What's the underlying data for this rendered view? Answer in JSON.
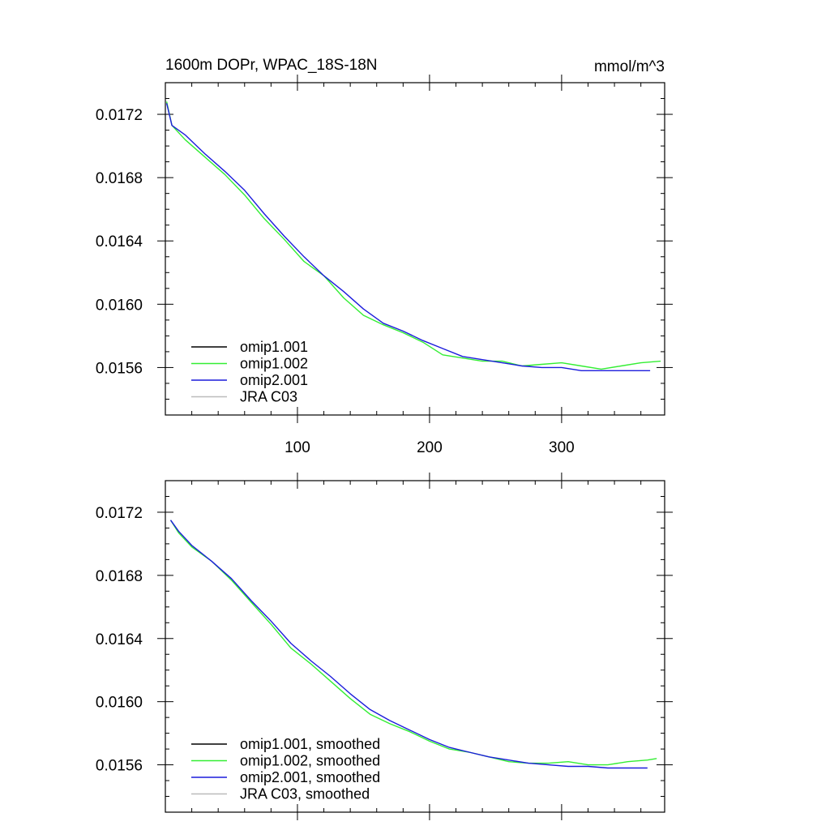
{
  "chart_data": [
    {
      "type": "line",
      "title": "1600m DOPr, WPAC_18S-18N",
      "units": "mmol/m^3",
      "xlim": [
        0,
        378
      ],
      "ylim": [
        0.0153,
        0.0174
      ],
      "x_ticks": [
        100,
        200,
        300
      ],
      "y_ticks": [
        0.0156,
        0.016,
        0.0164,
        0.0168,
        0.0172
      ],
      "y_tick_labels": [
        "0.0156",
        "0.0160",
        "0.0164",
        "0.0168",
        "0.0172"
      ],
      "legend_position": "bottom-left",
      "series": [
        {
          "name": "omip1.001",
          "color": "#000000",
          "x": [],
          "y": []
        },
        {
          "name": "omip1.002",
          "color": "#33ee33",
          "x": [
            1,
            5,
            15,
            30,
            45,
            60,
            75,
            90,
            105,
            120,
            135,
            150,
            165,
            180,
            195,
            210,
            225,
            240,
            255,
            270,
            285,
            300,
            315,
            330,
            345,
            360,
            375
          ],
          "y": [
            0.01728,
            0.01713,
            0.01704,
            0.01693,
            0.01682,
            0.01669,
            0.01654,
            0.01641,
            0.01627,
            0.01618,
            0.01604,
            0.01593,
            0.01587,
            0.01582,
            0.01576,
            0.01568,
            0.01566,
            0.01564,
            0.01564,
            0.01561,
            0.01562,
            0.01563,
            0.01561,
            0.01559,
            0.01561,
            0.01563,
            0.01564
          ]
        },
        {
          "name": "omip2.001",
          "color": "#1c1cdc",
          "x": [
            1,
            5,
            15,
            30,
            45,
            60,
            75,
            90,
            105,
            120,
            135,
            150,
            165,
            180,
            195,
            210,
            225,
            240,
            255,
            270,
            285,
            300,
            315,
            330,
            345,
            360,
            367
          ],
          "y": [
            0.01727,
            0.01713,
            0.01707,
            0.01695,
            0.01684,
            0.01672,
            0.01657,
            0.01643,
            0.0163,
            0.01618,
            0.01608,
            0.01597,
            0.01588,
            0.01583,
            0.01577,
            0.01572,
            0.01567,
            0.01565,
            0.01563,
            0.01561,
            0.0156,
            0.0156,
            0.01558,
            0.01558,
            0.01558,
            0.01558,
            0.01558
          ]
        },
        {
          "name": "JRA C03",
          "color": "#bbbbbb",
          "x": [],
          "y": []
        }
      ]
    },
    {
      "type": "line",
      "title": "",
      "units": "",
      "xlim": [
        0,
        378
      ],
      "ylim": [
        0.0153,
        0.0174
      ],
      "x_ticks": [
        100,
        200,
        300
      ],
      "y_ticks": [
        0.0156,
        0.016,
        0.0164,
        0.0168,
        0.0172
      ],
      "y_tick_labels": [
        "0.0156",
        "0.0160",
        "0.0164",
        "0.0168",
        "0.0172"
      ],
      "legend_position": "bottom-left",
      "series": [
        {
          "name": "omip1.001, smoothed",
          "color": "#000000",
          "x": [],
          "y": []
        },
        {
          "name": "omip1.002, smoothed",
          "color": "#33ee33",
          "x": [
            4,
            10,
            20,
            35,
            50,
            65,
            80,
            95,
            110,
            125,
            140,
            155,
            170,
            185,
            200,
            215,
            230,
            245,
            260,
            275,
            290,
            305,
            320,
            335,
            350,
            365,
            372
          ],
          "y": [
            0.01715,
            0.01707,
            0.01698,
            0.01689,
            0.01677,
            0.01663,
            0.01649,
            0.01634,
            0.01624,
            0.01613,
            0.01602,
            0.01592,
            0.01586,
            0.01581,
            0.01575,
            0.0157,
            0.01568,
            0.01565,
            0.01562,
            0.01561,
            0.01561,
            0.01562,
            0.0156,
            0.0156,
            0.01562,
            0.01563,
            0.01564
          ]
        },
        {
          "name": "omip2.001, smoothed",
          "color": "#1c1cdc",
          "x": [
            4,
            10,
            20,
            35,
            50,
            65,
            80,
            95,
            110,
            125,
            140,
            155,
            170,
            185,
            200,
            215,
            230,
            245,
            260,
            275,
            290,
            305,
            320,
            335,
            350,
            365
          ],
          "y": [
            0.01715,
            0.01708,
            0.01699,
            0.01689,
            0.01678,
            0.01664,
            0.01651,
            0.01637,
            0.01626,
            0.01616,
            0.01605,
            0.01595,
            0.01588,
            0.01582,
            0.01576,
            0.01571,
            0.01568,
            0.01565,
            0.01563,
            0.01561,
            0.0156,
            0.01559,
            0.01559,
            0.01558,
            0.01558,
            0.01558
          ]
        },
        {
          "name": "JRA C03, smoothed",
          "color": "#bbbbbb",
          "x": [],
          "y": []
        }
      ]
    }
  ]
}
